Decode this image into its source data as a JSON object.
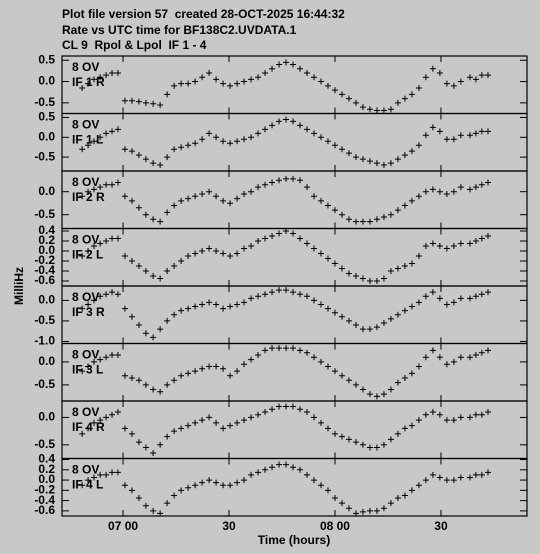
{
  "chart_data": {
    "type": "scatter",
    "title_lines": [
      "Plot file version 57  created 28-OCT-2025 16:44:32",
      "Rate vs UTC time for BF138C2.UVDATA.1",
      "CL 9  Rpol & Lpol  IF 1 - 4"
    ],
    "x_label": "Time (hours)",
    "y_label": "MilliHz",
    "color": "#000000",
    "xlim": [
      6.712,
      8.906
    ],
    "xticks": [
      {
        "value": 7,
        "label": "07 00"
      },
      {
        "value": 7.5,
        "label": "30"
      },
      {
        "value": 8,
        "label": "08 00"
      },
      {
        "value": 8.5,
        "label": "30"
      }
    ],
    "x": [
      6.807,
      6.835,
      6.863,
      6.892,
      6.92,
      6.948,
      6.976,
      7.009,
      7.042,
      7.075,
      7.108,
      7.142,
      7.175,
      7.208,
      7.241,
      7.274,
      7.307,
      7.34,
      7.373,
      7.406,
      7.439,
      7.472,
      7.505,
      7.538,
      7.571,
      7.604,
      7.637,
      7.67,
      7.703,
      7.736,
      7.769,
      7.802,
      7.835,
      7.868,
      7.901,
      7.934,
      7.967,
      8.0,
      8.033,
      8.066,
      8.099,
      8.132,
      8.165,
      8.198,
      8.231,
      8.264,
      8.297,
      8.33,
      8.363,
      8.396,
      8.429,
      8.462,
      8.495,
      8.528,
      8.561,
      8.594,
      8.637,
      8.665,
      8.693,
      8.722
    ],
    "panels": [
      {
        "labels": [
          "8 OV",
          "IF 1 R"
        ],
        "ylim": [
          -0.75,
          0.6
        ],
        "yticks": [
          0.5,
          {
            "value": 0,
            "label": "0.0"
          },
          -0.5
        ],
        "values": [
          -0.15,
          -0.05,
          0.05,
          0.1,
          0.15,
          0.2,
          0.2,
          -0.45,
          -0.45,
          -0.47,
          -0.5,
          -0.52,
          -0.55,
          -0.3,
          -0.1,
          -0.05,
          -0.05,
          0.0,
          0.1,
          0.2,
          0.05,
          -0.05,
          -0.1,
          -0.05,
          0.0,
          0.05,
          0.1,
          0.2,
          0.3,
          0.4,
          0.45,
          0.4,
          0.3,
          0.2,
          0.1,
          0.0,
          -0.1,
          -0.2,
          -0.3,
          -0.4,
          -0.5,
          -0.6,
          -0.65,
          -0.68,
          -0.68,
          -0.65,
          -0.5,
          -0.4,
          -0.3,
          -0.15,
          0.1,
          0.3,
          0.2,
          -0.05,
          -0.1,
          0.0,
          0.1,
          0.05,
          0.15,
          0.15
        ]
      },
      {
        "labels": [
          "8 OV",
          "IF 1 L"
        ],
        "ylim": [
          -0.85,
          0.6
        ],
        "yticks": [
          0.5,
          {
            "value": 0,
            "label": "0.0"
          },
          -0.5
        ],
        "values": [
          -0.3,
          -0.2,
          -0.1,
          0.0,
          0.1,
          0.15,
          0.2,
          -0.3,
          -0.35,
          -0.45,
          -0.55,
          -0.65,
          -0.7,
          -0.5,
          -0.3,
          -0.25,
          -0.2,
          -0.15,
          -0.05,
          0.1,
          0.0,
          -0.1,
          -0.15,
          -0.1,
          -0.05,
          0.0,
          0.1,
          0.2,
          0.3,
          0.4,
          0.45,
          0.4,
          0.3,
          0.2,
          0.1,
          0.0,
          -0.1,
          -0.2,
          -0.3,
          -0.4,
          -0.5,
          -0.55,
          -0.6,
          -0.65,
          -0.7,
          -0.65,
          -0.55,
          -0.45,
          -0.35,
          -0.2,
          0.05,
          0.25,
          0.15,
          -0.05,
          -0.05,
          0.05,
          0.05,
          0.1,
          0.15,
          0.15
        ]
      },
      {
        "labels": [
          "8 OV",
          "IF 2 R"
        ],
        "ylim": [
          -0.8,
          0.45
        ],
        "yticks": [
          {
            "value": 0,
            "label": "0.0"
          },
          -0.5
        ],
        "values": [
          -0.1,
          0.0,
          0.05,
          0.1,
          0.15,
          0.15,
          0.2,
          -0.1,
          -0.2,
          -0.35,
          -0.5,
          -0.6,
          -0.65,
          -0.45,
          -0.3,
          -0.2,
          -0.15,
          -0.1,
          -0.05,
          0.0,
          -0.1,
          -0.2,
          -0.25,
          -0.15,
          -0.05,
          0.0,
          0.1,
          0.15,
          0.2,
          0.25,
          0.28,
          0.28,
          0.25,
          0.1,
          -0.1,
          -0.2,
          -0.3,
          -0.4,
          -0.5,
          -0.6,
          -0.65,
          -0.65,
          -0.65,
          -0.6,
          -0.55,
          -0.5,
          -0.4,
          -0.3,
          -0.2,
          -0.1,
          0.0,
          0.05,
          0.0,
          -0.05,
          0.0,
          0.1,
          0.05,
          0.1,
          0.15,
          0.2
        ]
      },
      {
        "labels": [
          "8 OV",
          "IF 2 L"
        ],
        "ylim": [
          -0.7,
          0.45
        ],
        "yticks": [
          0.4,
          0.2,
          {
            "value": 0,
            "label": "0.0"
          },
          -0.2,
          -0.4,
          -0.6
        ],
        "values": [
          -0.1,
          0.0,
          0.1,
          0.15,
          0.2,
          0.25,
          0.25,
          -0.1,
          -0.2,
          -0.3,
          -0.4,
          -0.5,
          -0.55,
          -0.4,
          -0.3,
          -0.2,
          -0.1,
          -0.05,
          0.0,
          0.05,
          0.0,
          -0.05,
          -0.1,
          -0.05,
          0.05,
          0.1,
          0.2,
          0.25,
          0.3,
          0.35,
          0.4,
          0.35,
          0.25,
          0.15,
          0.05,
          -0.05,
          -0.15,
          -0.25,
          -0.35,
          -0.45,
          -0.5,
          -0.55,
          -0.6,
          -0.6,
          -0.55,
          -0.4,
          -0.35,
          -0.3,
          -0.25,
          -0.1,
          0.1,
          0.15,
          0.1,
          0.05,
          0.1,
          0.15,
          0.15,
          0.2,
          0.25,
          0.3
        ]
      },
      {
        "labels": [
          "8 OV",
          "IF 3 R"
        ],
        "ylim": [
          -1.05,
          0.35
        ],
        "yticks": [
          {
            "value": 0,
            "label": "0.0"
          },
          -0.5,
          {
            "value": -1,
            "label": "-1.0"
          }
        ],
        "values": [
          -0.2,
          -0.1,
          0.0,
          0.1,
          0.15,
          0.2,
          0.15,
          -0.2,
          -0.4,
          -0.6,
          -0.8,
          -0.9,
          -0.7,
          -0.5,
          -0.35,
          -0.25,
          -0.2,
          -0.15,
          -0.1,
          -0.05,
          -0.1,
          -0.2,
          -0.15,
          -0.1,
          -0.05,
          0.05,
          0.1,
          0.15,
          0.2,
          0.25,
          0.25,
          0.2,
          0.15,
          0.1,
          0.0,
          -0.1,
          -0.2,
          -0.3,
          -0.4,
          -0.5,
          -0.6,
          -0.7,
          -0.7,
          -0.65,
          -0.55,
          -0.45,
          -0.35,
          -0.25,
          -0.15,
          -0.05,
          0.1,
          0.2,
          0.05,
          -0.1,
          -0.05,
          0.05,
          0.05,
          0.1,
          0.15,
          0.2
        ]
      },
      {
        "labels": [
          "8 OV",
          "IF 3 L"
        ],
        "ylim": [
          -0.85,
          0.4
        ],
        "yticks": [
          {
            "value": 0,
            "label": "0.0"
          },
          -0.5
        ],
        "values": [
          -0.2,
          -0.1,
          0.0,
          0.05,
          0.1,
          0.15,
          0.15,
          -0.3,
          -0.35,
          -0.4,
          -0.5,
          -0.6,
          -0.65,
          -0.5,
          -0.4,
          -0.3,
          -0.25,
          -0.2,
          -0.15,
          -0.1,
          -0.1,
          -0.15,
          -0.3,
          -0.2,
          -0.05,
          0.05,
          0.15,
          0.25,
          0.3,
          0.3,
          0.3,
          0.3,
          0.25,
          0.2,
          0.1,
          0.0,
          -0.1,
          -0.2,
          -0.3,
          -0.4,
          -0.5,
          -0.6,
          -0.7,
          -0.75,
          -0.7,
          -0.6,
          -0.45,
          -0.35,
          -0.25,
          -0.1,
          0.1,
          0.25,
          0.1,
          -0.05,
          0.0,
          0.1,
          0.1,
          0.15,
          0.2,
          0.25
        ]
      },
      {
        "labels": [
          "8 OV",
          "IF 4 R"
        ],
        "ylim": [
          -0.75,
          0.3
        ],
        "yticks": [
          {
            "value": 0,
            "label": "0.0"
          },
          -0.5
        ],
        "values": [
          -0.3,
          -0.2,
          -0.1,
          -0.05,
          0.0,
          0.05,
          0.1,
          -0.2,
          -0.3,
          -0.45,
          -0.55,
          -0.65,
          -0.5,
          -0.35,
          -0.25,
          -0.2,
          -0.15,
          -0.1,
          -0.05,
          0.0,
          -0.1,
          -0.2,
          -0.15,
          -0.1,
          -0.05,
          0.0,
          0.05,
          0.1,
          0.15,
          0.2,
          0.2,
          0.2,
          0.15,
          0.1,
          0.0,
          -0.1,
          -0.2,
          -0.3,
          -0.35,
          -0.4,
          -0.45,
          -0.5,
          -0.55,
          -0.55,
          -0.5,
          -0.4,
          -0.3,
          -0.2,
          -0.15,
          -0.05,
          0.05,
          0.1,
          0.05,
          -0.05,
          -0.05,
          0.0,
          0.0,
          0.05,
          0.05,
          0.1
        ]
      },
      {
        "labels": [
          "8 OV",
          "IF 4 L"
        ],
        "ylim": [
          -0.7,
          0.42
        ],
        "yticks": [
          0.4,
          0.2,
          {
            "value": 0,
            "label": "0.0"
          },
          -0.2,
          -0.4,
          -0.6
        ],
        "values": [
          -0.1,
          0.0,
          0.05,
          0.1,
          0.1,
          0.15,
          0.15,
          -0.1,
          -0.2,
          -0.35,
          -0.5,
          -0.6,
          -0.65,
          -0.45,
          -0.3,
          -0.2,
          -0.15,
          -0.1,
          -0.05,
          0.0,
          -0.05,
          -0.1,
          -0.1,
          -0.05,
          0.0,
          0.1,
          0.15,
          0.2,
          0.25,
          0.3,
          0.3,
          0.25,
          0.2,
          0.1,
          0.0,
          -0.1,
          -0.2,
          -0.35,
          -0.45,
          -0.55,
          -0.65,
          -0.62,
          -0.6,
          -0.6,
          -0.55,
          -0.45,
          -0.35,
          -0.3,
          -0.2,
          -0.1,
          0.0,
          0.1,
          0.05,
          0.0,
          0.0,
          0.05,
          0.05,
          0.1,
          0.1,
          0.15
        ]
      }
    ]
  }
}
